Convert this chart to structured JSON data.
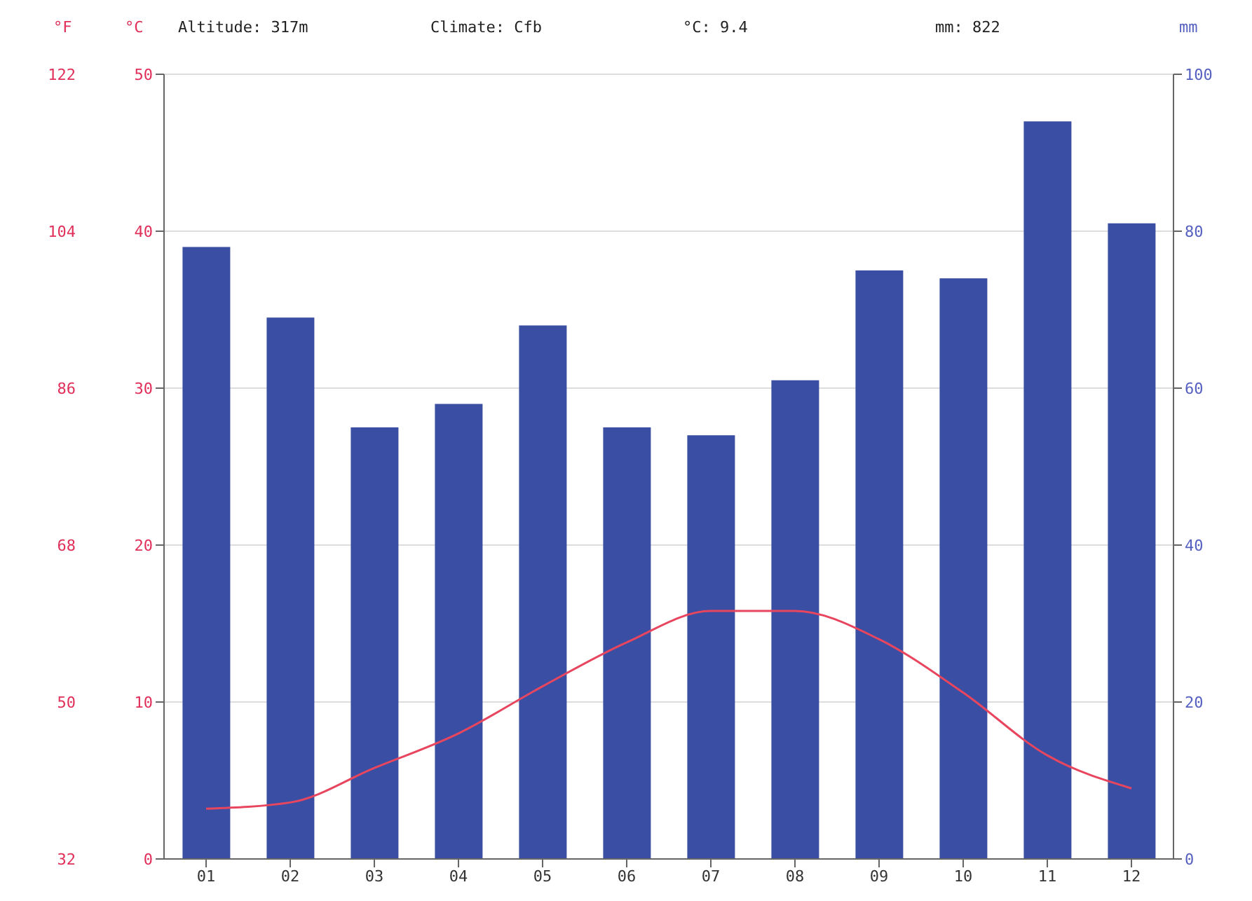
{
  "chart_data": {
    "type": "bar",
    "categories": [
      "01",
      "02",
      "03",
      "04",
      "05",
      "06",
      "07",
      "08",
      "09",
      "10",
      "11",
      "12"
    ],
    "series": [
      {
        "name": null,
        "axis": "y2",
        "color": "#3a4fa3",
        "values": [
          78,
          69,
          55,
          58,
          68,
          55,
          54,
          61,
          75,
          74,
          94,
          81
        ]
      },
      {
        "name": null,
        "type": "line",
        "axis": "y",
        "color": "#e8455f",
        "values": [
          3.2,
          3.6,
          5.8,
          8,
          11,
          13.8,
          15.8,
          15.8,
          14,
          10.6,
          6.6,
          4.5
        ]
      }
    ],
    "ylabel": "°C",
    "ylim": [
      0,
      50
    ],
    "yticks": [
      0,
      10,
      20,
      30,
      40,
      50
    ],
    "y2label": "mm",
    "y2lim": [
      0,
      100
    ],
    "y2ticks": [
      0,
      20,
      40,
      60,
      80,
      100
    ],
    "y3label": "°F",
    "y3lim": [
      32,
      122
    ],
    "y3ticks": [
      32,
      50,
      68,
      86,
      104,
      122
    ],
    "annotations": [
      "Altitude: 317m",
      "Climate: Cfb",
      "°C: 9.4",
      "mm: 822"
    ],
    "grid": "y",
    "marker": "none",
    "line_style": "solid"
  }
}
